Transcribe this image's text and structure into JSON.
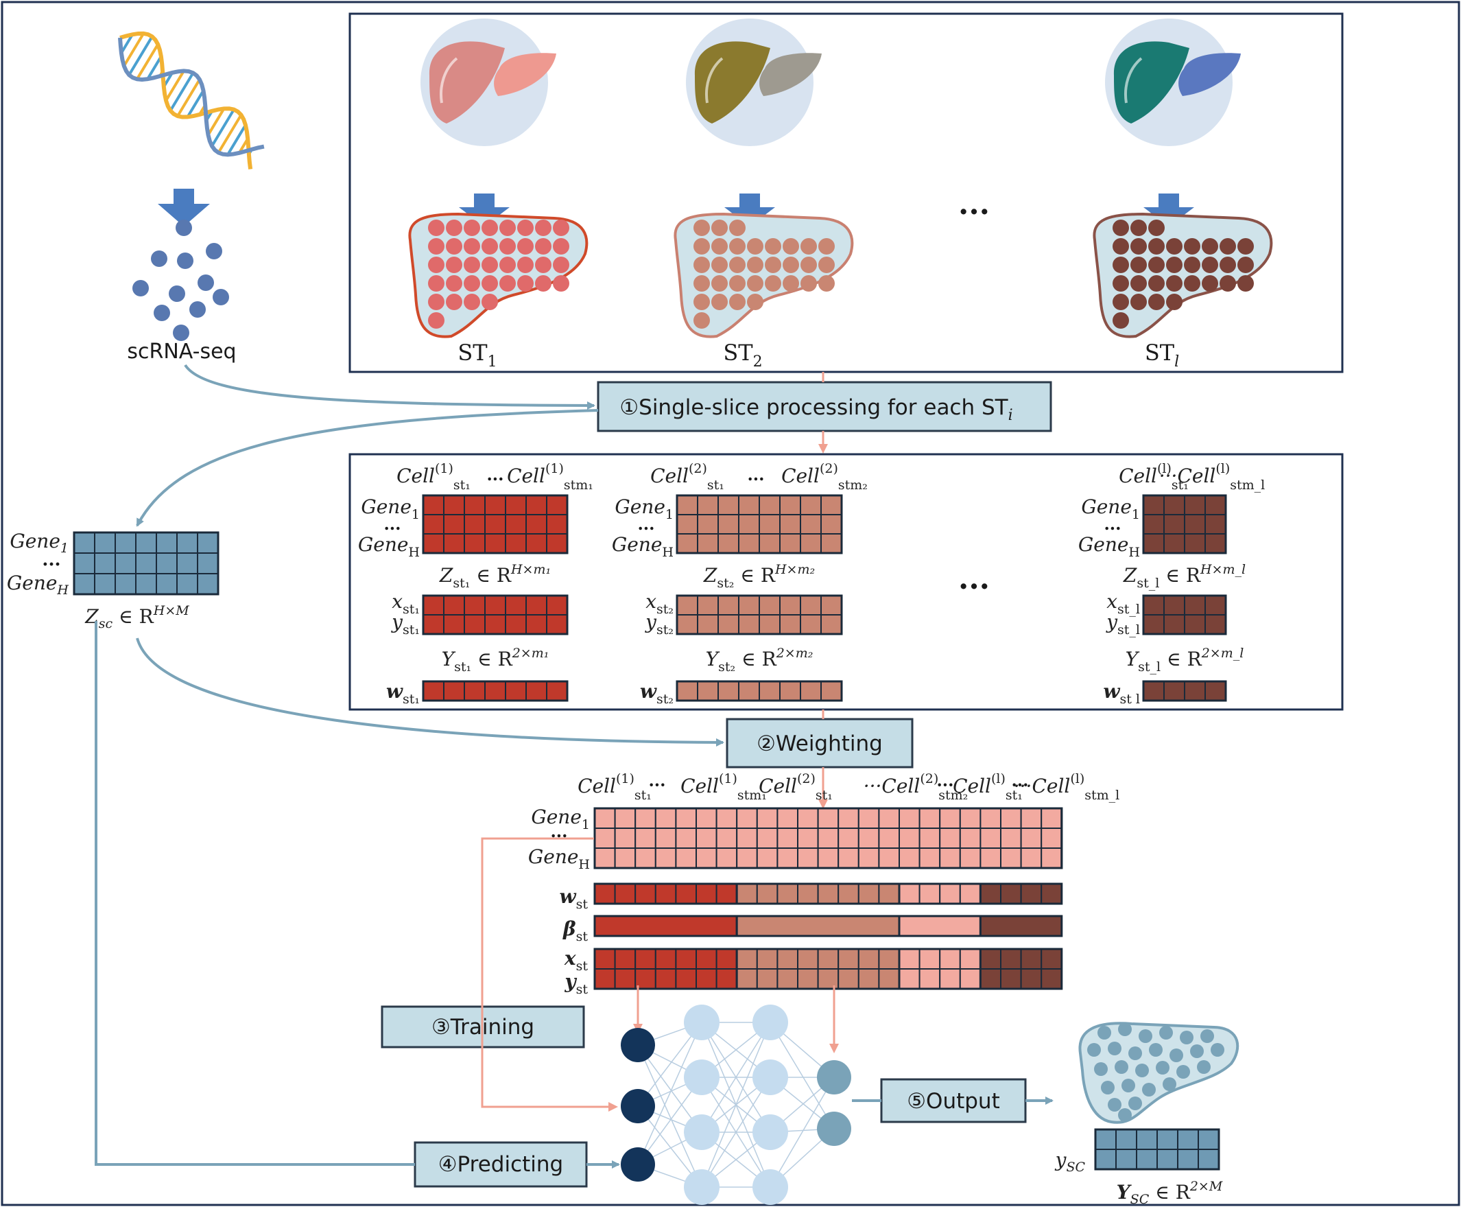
{
  "inputs": {
    "sc_label": "scRNA-seq",
    "st_slices": [
      {
        "label": "ST",
        "sub": "1",
        "color": "#e06a6a",
        "organ_main": "#d98a86",
        "organ_lobe": "#ee9990",
        "border": "#d04a2a"
      },
      {
        "label": "ST",
        "sub": "2",
        "color": "#c98672",
        "organ_main": "#8b7a2e",
        "organ_lobe": "#9e9a90",
        "border": "#c98070"
      },
      {
        "label": "ST",
        "sub": "l",
        "color": "#7a4238",
        "organ_main": "#1a7a72",
        "organ_lobe": "#5a78c0",
        "border": "#8a5248"
      }
    ],
    "ellipsis": "..."
  },
  "steps": {
    "step1": "①Single-slice processing for each ST",
    "step1_sub": "i",
    "step2": "②Weighting",
    "step3": "③Training",
    "step4": "④Predicting",
    "step5": "⑤Output"
  },
  "sc_matrix": {
    "row_top": "Gene",
    "row_top_sub": "1",
    "row_bottom": "Gene",
    "row_bottom_sub": "H",
    "dots": "...",
    "caption": "Z",
    "caption_sub": "sc",
    "caption_rest": " ∈ R",
    "caption_sup": "H×M",
    "color": "#6f9ab4"
  },
  "slice_blocks": [
    {
      "cell_first": "Cell",
      "cell_sup1": "(1)",
      "cell_sub1": "st₁",
      "cell_last_sub": "stm₁",
      "z_caption": "Z",
      "z_sub": "st₁",
      "z_sup": "H×m₁",
      "x": "x",
      "x_sub": "st₁",
      "y": "y",
      "y_sub": "st₁",
      "Y_caption": "Y",
      "Y_sub": "st₁",
      "Y_sup": "2×m₁",
      "w": "w",
      "w_sub": "st₁",
      "color": "#c0392b"
    },
    {
      "cell_first": "Cell",
      "cell_sup1": "(2)",
      "cell_sub1": "st₁",
      "cell_last_sub": "stm₂",
      "z_caption": "Z",
      "z_sub": "st₂",
      "z_sup": "H×m₂",
      "x": "x",
      "x_sub": "st₂",
      "y": "y",
      "y_sub": "st₂",
      "Y_caption": "Y",
      "Y_sub": "st₂",
      "Y_sup": "2×m₂",
      "w": "w",
      "w_sub": "st₂",
      "color": "#c98672"
    },
    {
      "cell_first": "Cell",
      "cell_sup1": "(l)",
      "cell_sub1": "st₁",
      "cell_last_sub": "stm_l",
      "z_caption": "Z",
      "z_sub": "st_l",
      "z_sup": "H×m_l",
      "x": "x",
      "x_sub": "st_l",
      "y": "y",
      "y_sub": "st_l",
      "Y_caption": "Y",
      "Y_sub": "st_l",
      "Y_sup": "2×m_l",
      "w": "w",
      "w_sub": "st l",
      "color": "#7a4238"
    }
  ],
  "combined": {
    "cell_labels": [
      "Cell",
      "...",
      "Cell",
      "Cell",
      "...Cell",
      "...",
      "Cell",
      "...Cell"
    ],
    "gene_top": "Gene",
    "gene_top_sub": "1",
    "gene_bottom": "Gene",
    "gene_bottom_sub": "H",
    "dots": "...",
    "w_label": "w",
    "w_sub": "st",
    "beta_label": "β",
    "beta_sub": "st",
    "x_label": "x",
    "x_sub": "st",
    "y_label": "y",
    "y_sub": "st",
    "pink": "#f2aaa0"
  },
  "output": {
    "y_label": "y",
    "y_sub": "SC",
    "caption": "Y",
    "caption_sub": "SC",
    "caption_rest": " ∈ R",
    "caption_sup": "2×M",
    "color": "#6f9ab4"
  },
  "colors": {
    "box_fill": "#c5dde6",
    "box_stroke": "#2b3a4a",
    "frame": "#1f3050",
    "arrow_blue": "#7aa3b8",
    "arrow_down": "#4a7cc0",
    "arrow_pink": "#f0a090",
    "node_dark": "#13345a",
    "node_light": "#c5dcef",
    "node_out": "#7aa3b8"
  }
}
